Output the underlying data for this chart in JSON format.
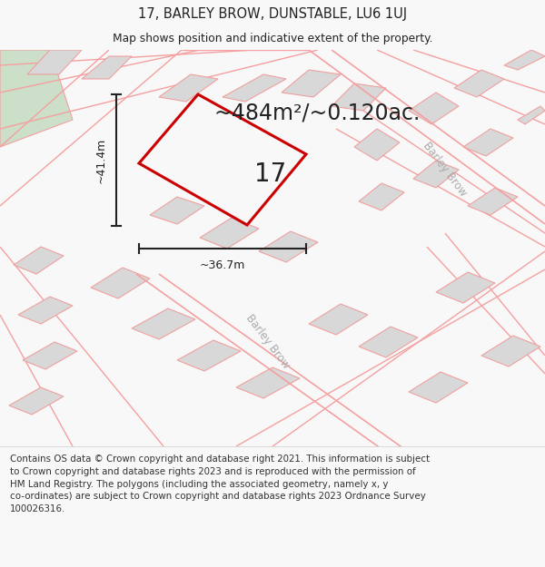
{
  "title_line1": "17, BARLEY BROW, DUNSTABLE, LU6 1UJ",
  "title_line2": "Map shows position and indicative extent of the property.",
  "area_text": "~484m²/~0.120ac.",
  "label_17": "17",
  "dim_height": "~41.4m",
  "dim_width": "~36.7m",
  "footer_lines": [
    "Contains OS data © Crown copyright and database right 2021. This information is subject",
    "to Crown copyright and database rights 2023 and is reproduced with the permission of",
    "HM Land Registry. The polygons (including the associated geometry, namely x, y",
    "co-ordinates) are subject to Crown copyright and database rights 2023 Ordnance Survey",
    "100026316."
  ],
  "bg_color": "#f8f8f8",
  "map_bg": "#f9f9f9",
  "footer_bg": "#ffffff",
  "plot_polygon_color": "#cc0000",
  "road_color": "#f5a0a0",
  "building_fill": "#d8d8d8",
  "building_stroke": "#f0a0a0",
  "green_color": "#ccdfc8",
  "street_label_color": "#aaaaaa",
  "dim_color": "#222222",
  "text_color": "#222222"
}
